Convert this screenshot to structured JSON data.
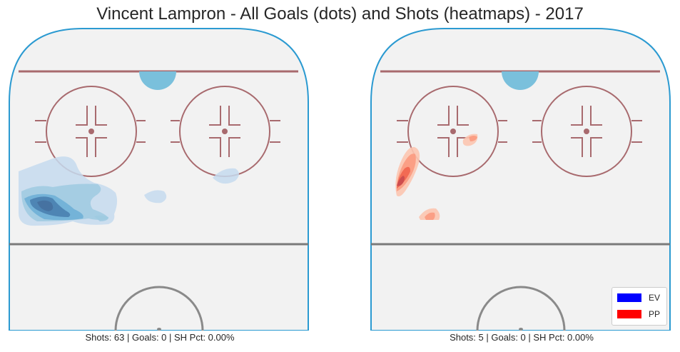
{
  "title": "Vincent Lampron - All Goals (dots) and Shots (heatmaps) - 2017",
  "colors": {
    "ice": "#f2f2f2",
    "boards": "#2b9ad1",
    "goal_line": "#a86a6e",
    "circles": "#a86a6e",
    "center_line": "#7a7a7a",
    "ref_crease": "#7ac0dc",
    "ev": "#0000ff",
    "pp": "#ff0000"
  },
  "chart_data": [
    {
      "type": "heatmap",
      "panel": "left",
      "situation": "EV",
      "color_scale": "blues",
      "caption": "Shots: 63 | Goals: 0 | SH Pct: 0.00%",
      "shots": 63,
      "goals": 0,
      "sh_pct": "0.00%"
    },
    {
      "type": "heatmap",
      "panel": "right",
      "situation": "PP",
      "color_scale": "reds",
      "caption": "Shots: 5 | Goals: 0 | SH Pct: 0.00%",
      "shots": 5,
      "goals": 0,
      "sh_pct": "0.00%"
    }
  ],
  "legend": {
    "items": [
      {
        "label": "EV",
        "color": "#0000ff"
      },
      {
        "label": "PP",
        "color": "#ff0000"
      }
    ]
  }
}
